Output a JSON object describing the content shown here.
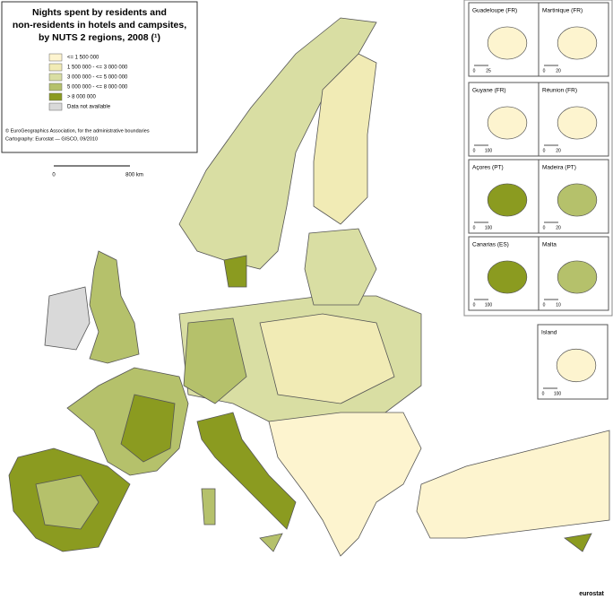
{
  "title": [
    "Nights spent by residents and",
    "non-residents in hotels and campsites,",
    "by NUTS 2 regions, 2008 (¹)"
  ],
  "legend": [
    {
      "label": "<= 1 500 000",
      "color": "#fdf4cf"
    },
    {
      "label": "1 500 000 - <= 3 000 000",
      "color": "#f1ebb5"
    },
    {
      "label": "3 000 000 - <= 5 000 000",
      "color": "#d9dea3"
    },
    {
      "label": "5 000 000 - <= 8 000 000",
      "color": "#b5c16b"
    },
    {
      "label": "> 8 000 000",
      "color": "#8b9b20"
    },
    {
      "label": "Data not available",
      "color": "#d9d9d9"
    }
  ],
  "credits": [
    "© EuroGeographics Association, for the administrative boundaries",
    "Cartography: Eurostat — GISCO, 09/2010"
  ],
  "scale": [
    "0",
    "800 km"
  ],
  "insets": [
    {
      "name": "Guadeloupe (FR)",
      "scale": [
        "0",
        "25"
      ]
    },
    {
      "name": "Martinique (FR)",
      "scale": [
        "0",
        "20"
      ]
    },
    {
      "name": "Guyane (FR)",
      "scale": [
        "0",
        "100"
      ]
    },
    {
      "name": "Réunion (FR)",
      "scale": [
        "0",
        "20"
      ]
    },
    {
      "name": "Açores (PT)",
      "scale": [
        "0",
        "100"
      ]
    },
    {
      "name": "Madeira (PT)",
      "scale": [
        "0",
        "20"
      ]
    },
    {
      "name": "Canarias (ES)",
      "scale": [
        "0",
        "100"
      ]
    },
    {
      "name": "Malta",
      "scale": [
        "0",
        "10"
      ]
    },
    {
      "name": "Island",
      "scale": [
        "0",
        "100"
      ]
    }
  ],
  "logo": "eurostat"
}
